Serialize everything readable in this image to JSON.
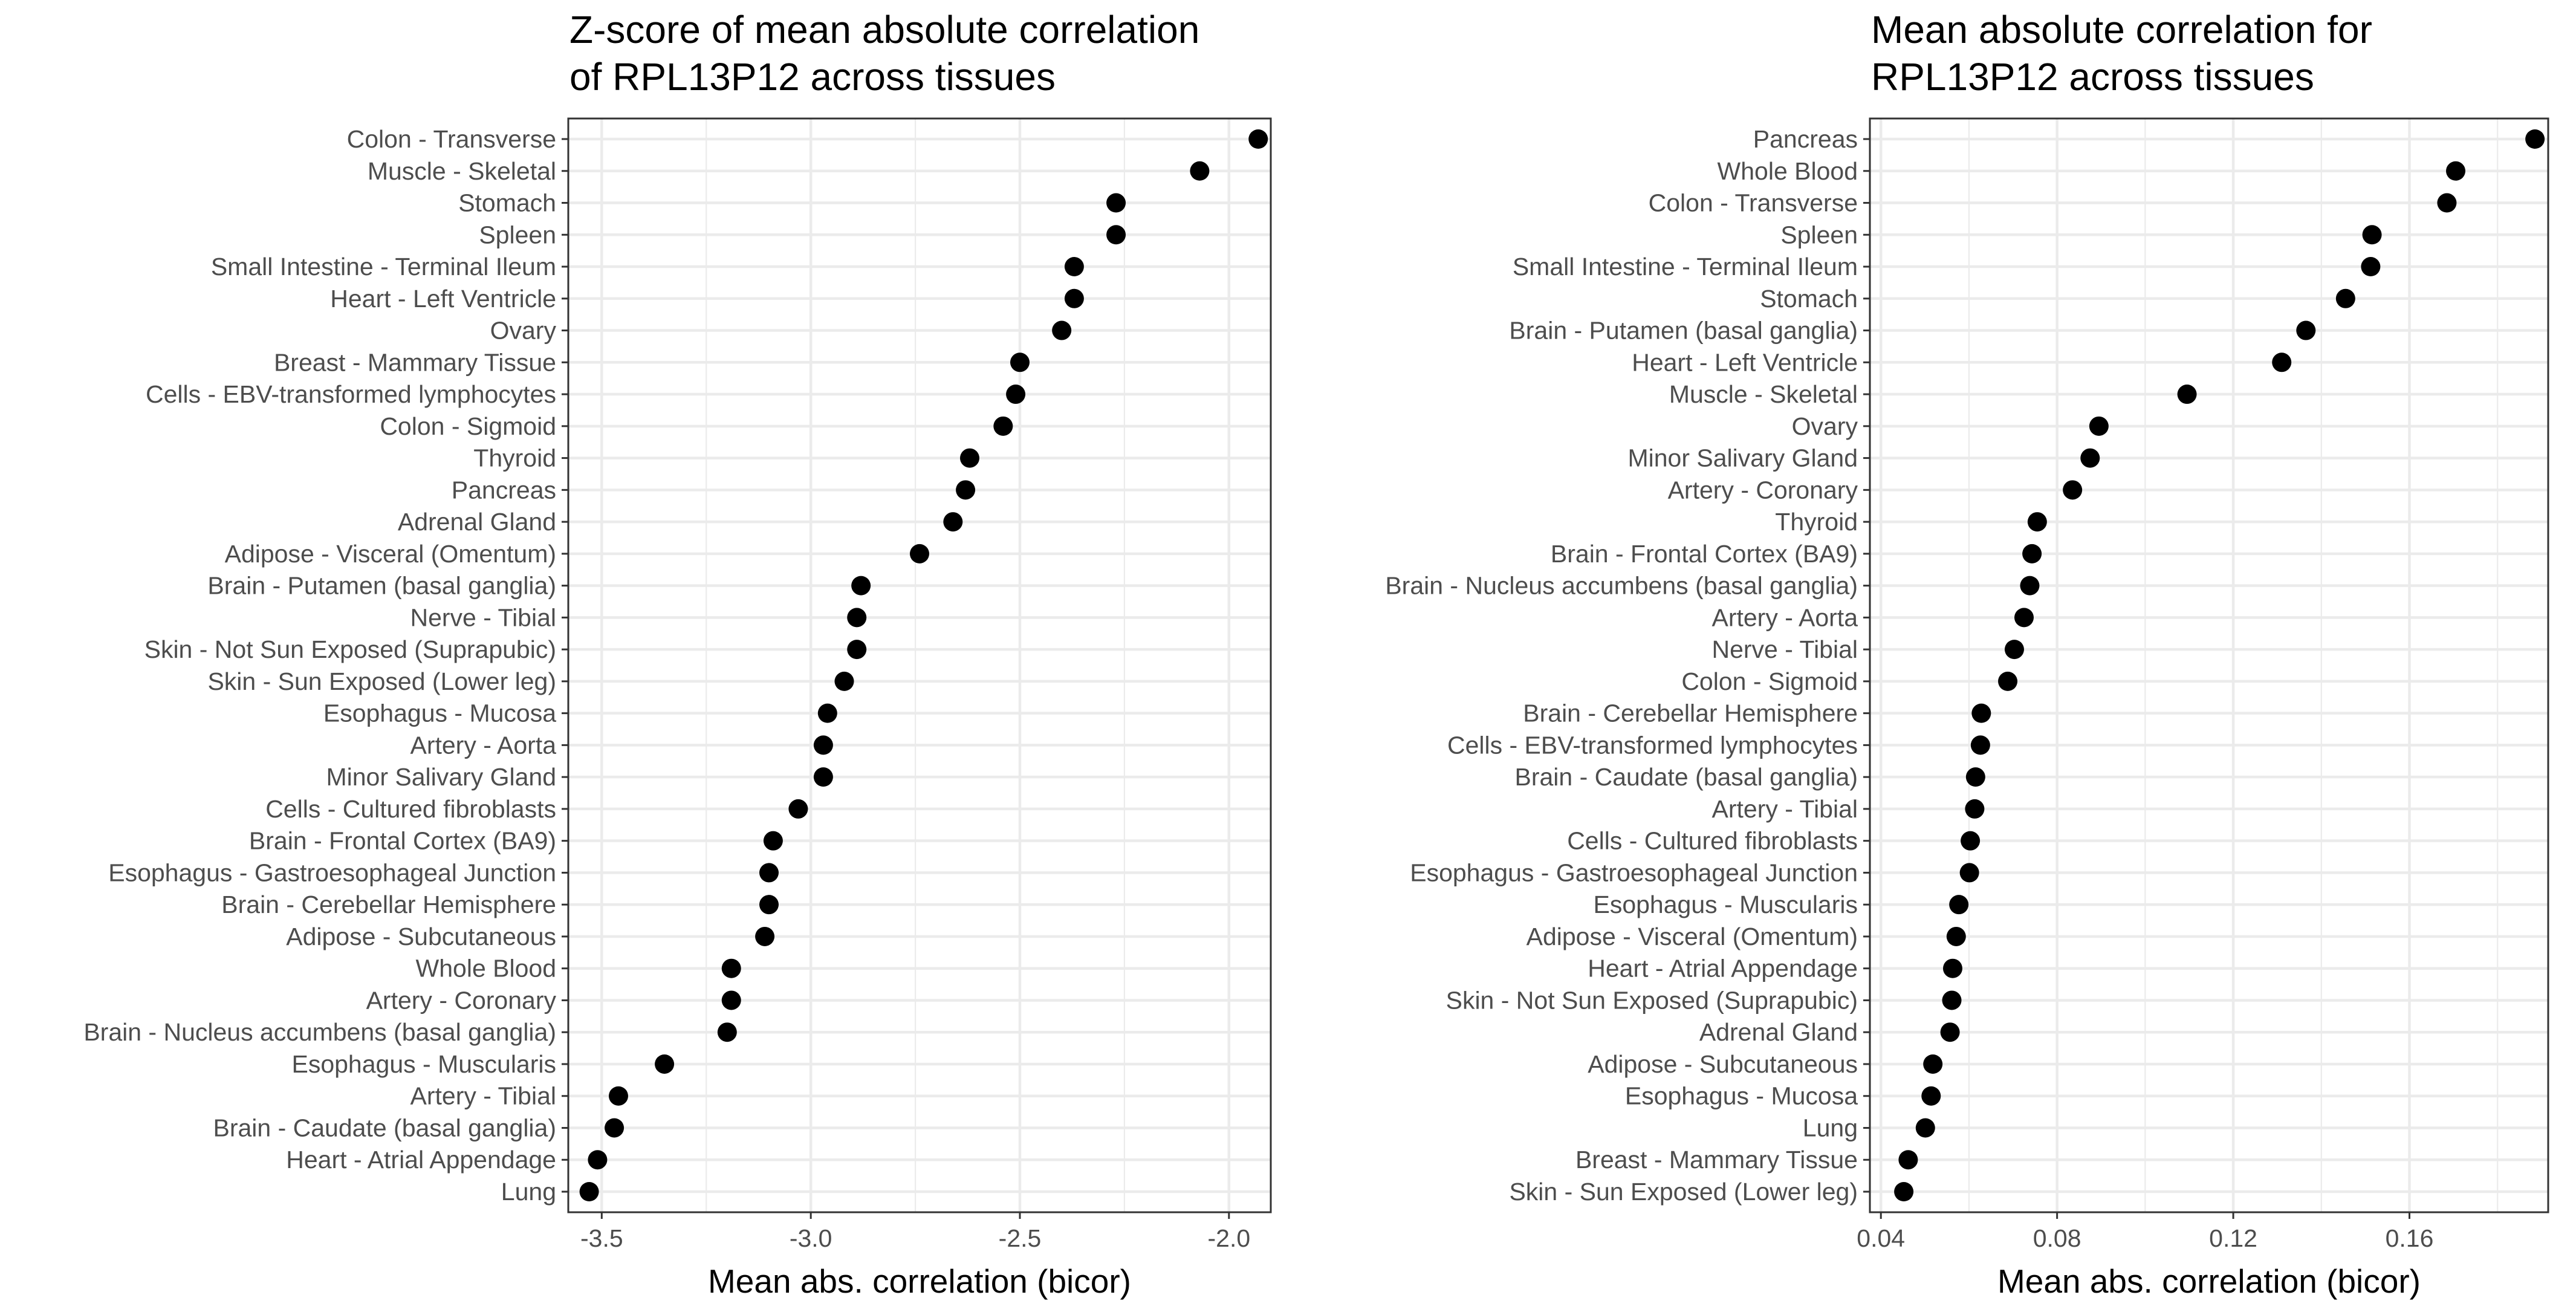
{
  "colors": {
    "background": "#ffffff",
    "point": "#000000",
    "grid": "#ebebeb",
    "frame": "#333333",
    "label": "#4d4d4d"
  },
  "chart_data": [
    {
      "type": "scatter",
      "title": "Z-score of mean absolute correlation\nof RPL13P12 across tissues",
      "title_lines": [
        "Z-score of mean absolute correlation",
        "of RPL13P12 across tissues"
      ],
      "xlabel": "Mean abs. correlation (bicor)",
      "ylabel": "",
      "xlim": [
        -3.58,
        -1.9
      ],
      "xticks": [
        -3.5,
        -3.0,
        -2.5,
        -2.0
      ],
      "xtick_labels": [
        "-3.5",
        "-3.0",
        "-2.5",
        "-2.0"
      ],
      "grid": true,
      "categories": [
        "Colon - Transverse",
        "Muscle - Skeletal",
        "Stomach",
        "Spleen",
        "Small Intestine - Terminal Ileum",
        "Heart - Left Ventricle",
        "Ovary",
        "Breast - Mammary Tissue",
        "Cells - EBV-transformed lymphocytes",
        "Colon - Sigmoid",
        "Thyroid",
        "Pancreas",
        "Adrenal Gland",
        "Adipose - Visceral (Omentum)",
        "Brain - Putamen (basal ganglia)",
        "Nerve - Tibial",
        "Skin - Not Sun Exposed (Suprapubic)",
        "Skin - Sun Exposed (Lower leg)",
        "Esophagus - Mucosa",
        "Artery - Aorta",
        "Minor Salivary Gland",
        "Cells - Cultured fibroblasts",
        "Brain - Frontal Cortex (BA9)",
        "Esophagus - Gastroesophageal Junction",
        "Brain - Cerebellar Hemisphere",
        "Adipose - Subcutaneous",
        "Whole Blood",
        "Artery - Coronary",
        "Brain - Nucleus accumbens (basal ganglia)",
        "Esophagus - Muscularis",
        "Artery - Tibial",
        "Brain - Caudate (basal ganglia)",
        "Heart - Atrial Appendage",
        "Lung"
      ],
      "values": [
        -1.93,
        -2.07,
        -2.27,
        -2.27,
        -2.37,
        -2.37,
        -2.4,
        -2.5,
        -2.51,
        -2.54,
        -2.62,
        -2.63,
        -2.66,
        -2.74,
        -2.88,
        -2.89,
        -2.89,
        -2.92,
        -2.96,
        -2.97,
        -2.97,
        -3.03,
        -3.09,
        -3.1,
        -3.1,
        -3.11,
        -3.19,
        -3.19,
        -3.2,
        -3.35,
        -3.46,
        -3.47,
        -3.51,
        -3.53
      ]
    },
    {
      "type": "scatter",
      "title": "Mean absolute correlation for\nRPL13P12 across tissues",
      "title_lines": [
        "Mean absolute correlation for",
        "RPL13P12 across tissues"
      ],
      "xlabel": "Mean abs. correlation (bicor)",
      "ylabel": "",
      "xlim": [
        0.0375,
        0.1915
      ],
      "xticks": [
        0.04,
        0.08,
        0.12,
        0.16
      ],
      "xtick_labels": [
        "0.04",
        "0.08",
        "0.12",
        "0.16"
      ],
      "grid": true,
      "categories": [
        "Pancreas",
        "Whole Blood",
        "Colon - Transverse",
        "Spleen",
        "Small Intestine - Terminal Ileum",
        "Stomach",
        "Brain - Putamen (basal ganglia)",
        "Heart - Left Ventricle",
        "Muscle - Skeletal",
        "Ovary",
        "Minor Salivary Gland",
        "Artery - Coronary",
        "Thyroid",
        "Brain - Frontal Cortex (BA9)",
        "Brain - Nucleus accumbens (basal ganglia)",
        "Artery - Aorta",
        "Nerve - Tibial",
        "Colon - Sigmoid",
        "Brain - Cerebellar Hemisphere",
        "Cells - EBV-transformed lymphocytes",
        "Brain - Caudate (basal ganglia)",
        "Artery - Tibial",
        "Cells - Cultured fibroblasts",
        "Esophagus - Gastroesophageal Junction",
        "Esophagus - Muscularis",
        "Adipose - Visceral (Omentum)",
        "Heart - Atrial Appendage",
        "Skin - Not Sun Exposed (Suprapubic)",
        "Adrenal Gland",
        "Adipose - Subcutaneous",
        "Esophagus - Mucosa",
        "Lung",
        "Breast - Mammary Tissue",
        "Skin - Sun Exposed (Lower leg)"
      ],
      "values": [
        0.1885,
        0.1705,
        0.1685,
        0.1515,
        0.1512,
        0.1455,
        0.1365,
        0.131,
        0.1095,
        0.0895,
        0.0875,
        0.0835,
        0.0755,
        0.0743,
        0.0738,
        0.0725,
        0.0703,
        0.0688,
        0.0628,
        0.0626,
        0.0615,
        0.0613,
        0.0603,
        0.0601,
        0.0577,
        0.0571,
        0.0563,
        0.0561,
        0.0557,
        0.0518,
        0.0514,
        0.0501,
        0.0462,
        0.0452
      ]
    }
  ]
}
